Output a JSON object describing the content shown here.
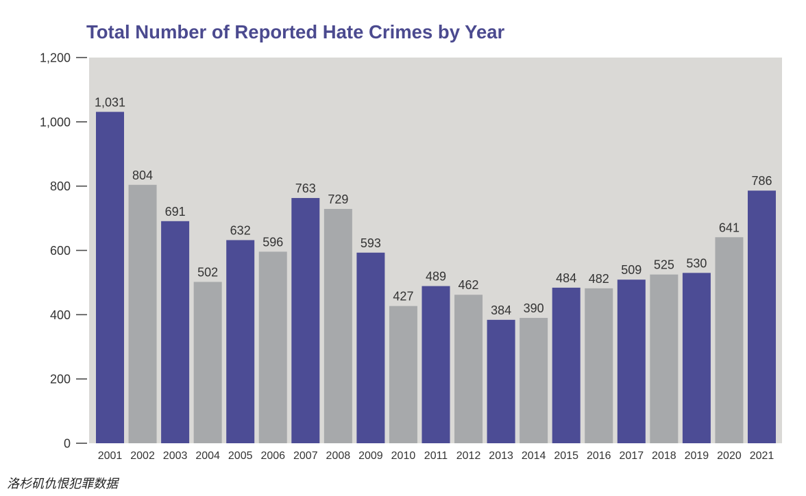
{
  "chart_data": {
    "type": "bar",
    "title": "Total Number of Reported Hate Crimes by Year",
    "categories": [
      "2001",
      "2002",
      "2003",
      "2004",
      "2005",
      "2006",
      "2007",
      "2008",
      "2009",
      "2010",
      "2011",
      "2012",
      "2013",
      "2014",
      "2015",
      "2016",
      "2017",
      "2018",
      "2019",
      "2020",
      "2021"
    ],
    "values": [
      1031,
      804,
      691,
      502,
      632,
      596,
      763,
      729,
      593,
      427,
      489,
      462,
      384,
      390,
      484,
      482,
      509,
      525,
      530,
      641,
      786
    ],
    "value_labels": [
      "1,031",
      "804",
      "691",
      "502",
      "632",
      "596",
      "763",
      "729",
      "593",
      "427",
      "489",
      "462",
      "384",
      "390",
      "484",
      "482",
      "509",
      "525",
      "530",
      "641",
      "786"
    ],
    "ylim": [
      0,
      1200
    ],
    "yticks": [
      0,
      200,
      400,
      600,
      800,
      1000,
      1200
    ],
    "ytick_labels": [
      "0",
      "200",
      "400",
      "600",
      "800",
      "1,000",
      "1,200"
    ],
    "grid": false,
    "data_labels": true,
    "bar_colors": [
      "#4c4c95",
      "#a7a9ab"
    ],
    "plot_background": "#dad9d6"
  },
  "colors": {
    "title": "#4b4a8f",
    "text": "#333333"
  },
  "caption": "洛杉矶仇恨犯罪数据"
}
